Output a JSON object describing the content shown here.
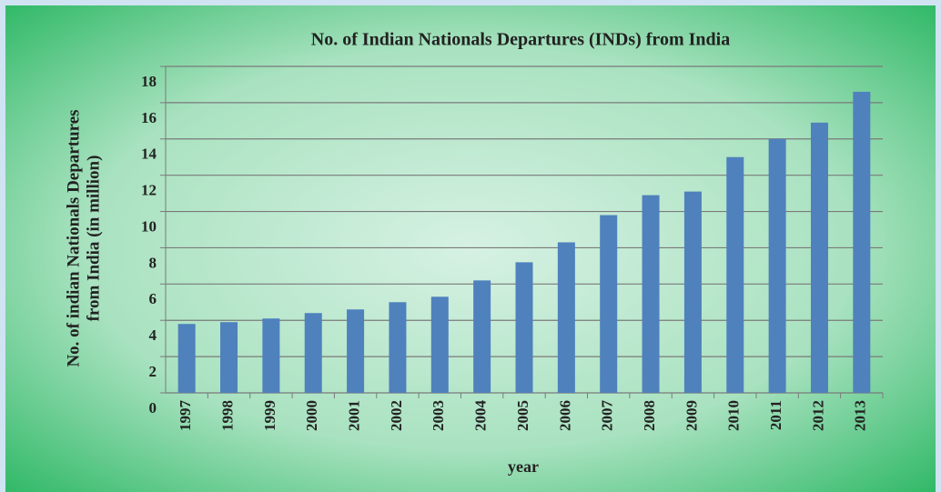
{
  "chart_data": {
    "type": "bar",
    "title": "No. of Indian Nationals Departures (INDs) from India",
    "y_label_lines": [
      "No. of indian Nationals Departures",
      "from India (in million)"
    ],
    "x_label": "year",
    "categories": [
      "1997",
      "1998",
      "1999",
      "2000",
      "2001",
      "2002",
      "2003",
      "2004",
      "2005",
      "2006",
      "2007",
      "2008",
      "2009",
      "2010",
      "2011",
      "2012",
      "2013"
    ],
    "values": [
      3.8,
      3.9,
      4.1,
      4.4,
      4.6,
      5.0,
      5.3,
      6.2,
      7.2,
      8.3,
      9.8,
      10.9,
      11.1,
      13.0,
      14.0,
      14.9,
      16.6
    ],
    "color": "#4f81bd",
    "ylim": [
      0,
      18
    ],
    "yticks": [
      0,
      2,
      4,
      6,
      8,
      10,
      12,
      14,
      16,
      18
    ],
    "grid": true
  }
}
